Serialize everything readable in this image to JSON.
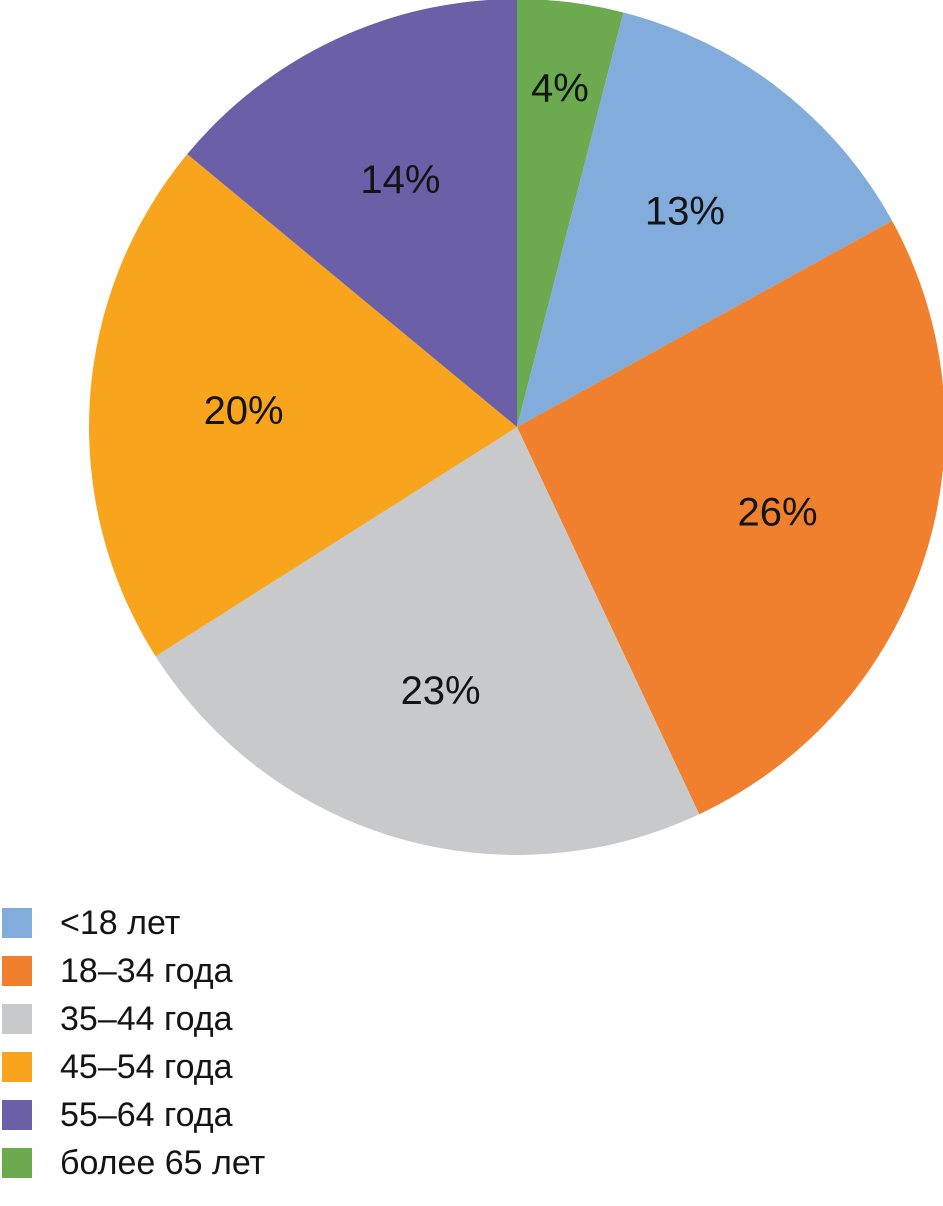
{
  "chart_data": {
    "type": "pie",
    "title": "",
    "categories": [
      "<18 лет",
      "18–34 года",
      "35–44 года",
      "45–54 года",
      "55–64 года",
      "более 65 лет"
    ],
    "values": [
      13,
      26,
      23,
      20,
      14,
      4
    ],
    "percent_labels": [
      "13%",
      "26%",
      "23%",
      "20%",
      "14%",
      "4%"
    ],
    "colors": [
      "#81ACDC",
      "#F0802E",
      "#C8C9CB",
      "#F8A41D",
      "#6B60A8",
      "#6BAA4E"
    ],
    "legend_position": "bottom-left",
    "rotation_note": "slices drawn clockwise starting at 12 o'clock with 'более 65 лет' (4%), then '<18 лет' 13%, '18–34 года' 26%, '35–44 года' 23%, '45–54 года' 20%, '55–64 года' 14%",
    "draw_order": [
      5,
      0,
      1,
      2,
      3,
      4
    ],
    "label_radius_fraction": [
      0.64,
      0.64,
      0.64,
      0.64,
      0.64,
      0.8
    ]
  }
}
